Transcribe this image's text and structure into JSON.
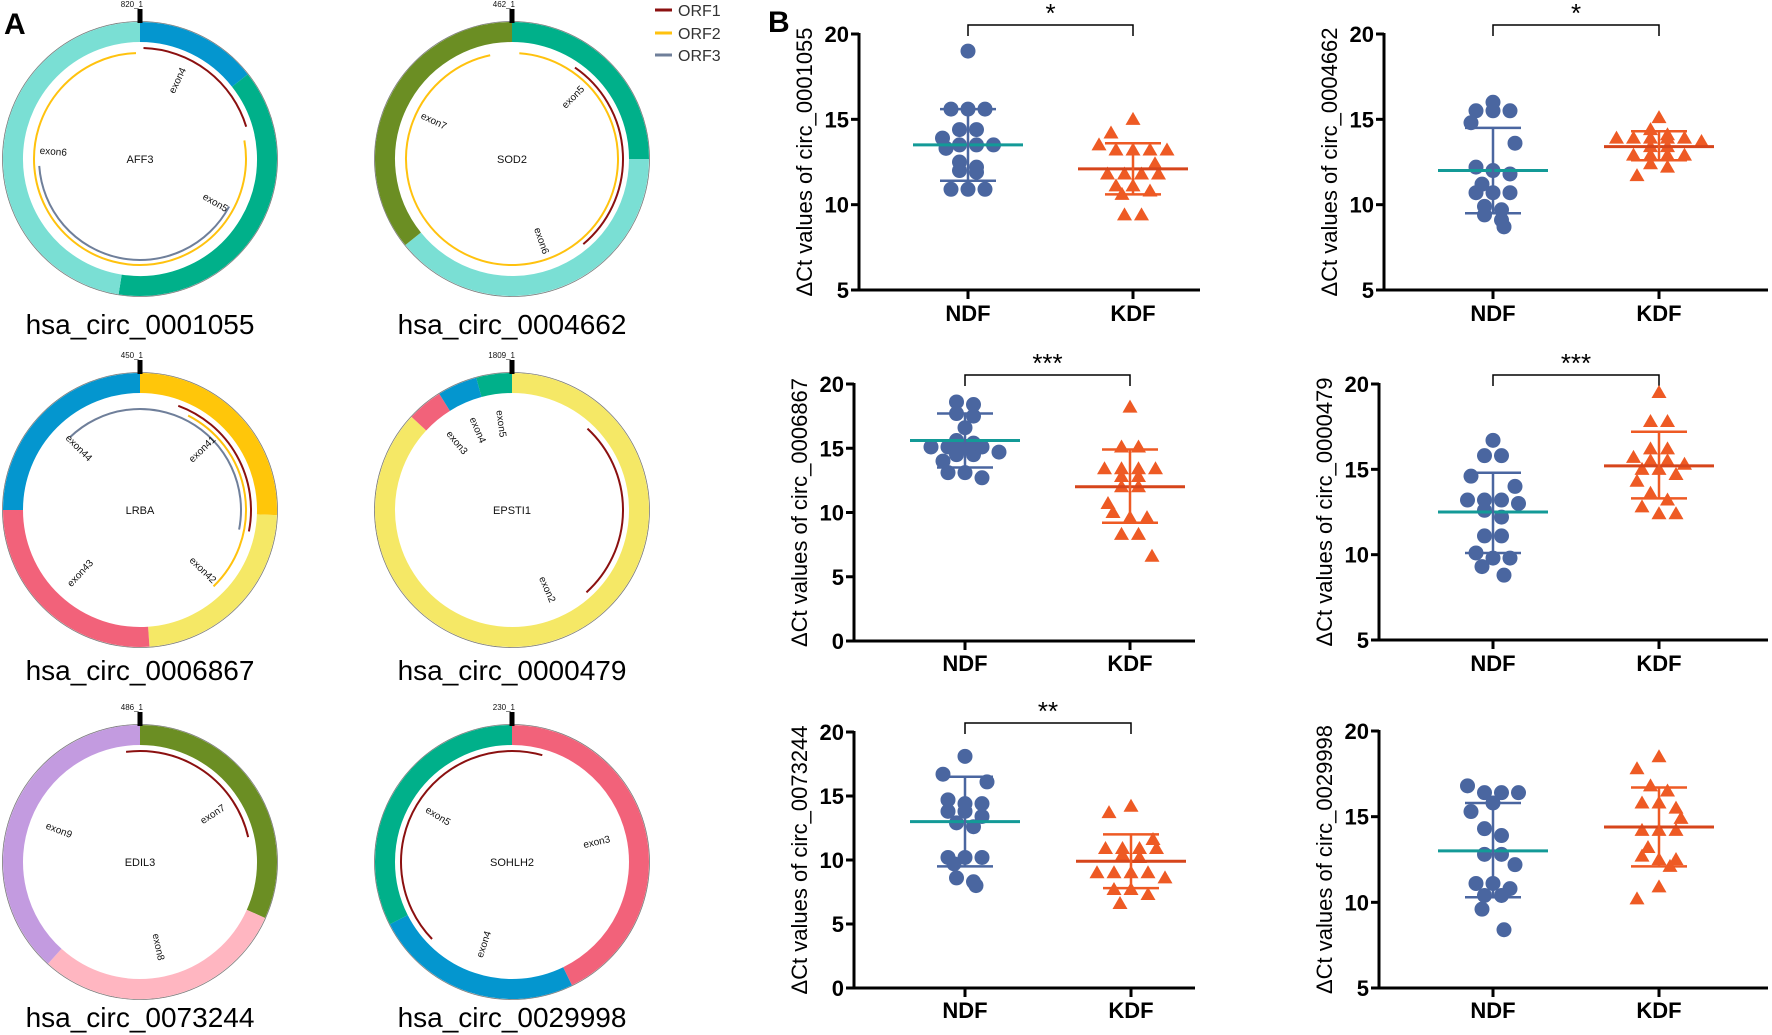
{
  "panel_labels": {
    "a": "A",
    "b": "B"
  },
  "legend": [
    {
      "label": "ORF1",
      "color": "#8b1010"
    },
    {
      "label": "ORF2",
      "color": "#ffc20e"
    },
    {
      "label": "ORF3",
      "color": "#6f7f9a"
    }
  ],
  "circles": [
    {
      "name": "hsa_circ_0001055",
      "gene": "AFF3",
      "position_label": "820_1",
      "segments": [
        {
          "exon": "exon4",
          "start": 0,
          "end": 0.144,
          "color": "#0496cf"
        },
        {
          "exon": "exon5",
          "start": 0.144,
          "end": 0.525,
          "color": "#00b08a"
        },
        {
          "exon": "exon6",
          "start": 0.525,
          "end": 1,
          "color": "#7adfd4"
        }
      ],
      "orfs": [
        {
          "orf": "ORF1",
          "start": 0.005,
          "end": 0.203
        },
        {
          "orf": "ORF2",
          "start": 0.222,
          "end": 0.994
        },
        {
          "orf": "ORF3",
          "start": 0.328,
          "end": 0.739
        }
      ]
    },
    {
      "name": "hsa_circ_0004662",
      "gene": "SOD2",
      "position_label": "462_1",
      "segments": [
        {
          "exon": "exon5",
          "start": 0,
          "end": 0.25,
          "color": "#00b08a"
        },
        {
          "exon": "exon6",
          "start": 0.25,
          "end": 0.642,
          "color": "#7adfd4"
        },
        {
          "exon": "exon7",
          "start": 0.642,
          "end": 1,
          "color": "#6b8e23"
        }
      ],
      "orfs": [
        {
          "orf": "ORF1",
          "start": 0.096,
          "end": 0.389
        },
        {
          "orf": "ORF2",
          "start": 0.011,
          "end": 0.967
        }
      ]
    },
    {
      "name": "hsa_circ_0006867",
      "gene": "LRBA",
      "position_label": "450_1",
      "segments": [
        {
          "exon": "exon41",
          "start": 0,
          "end": 0.256,
          "color": "#ffc60a"
        },
        {
          "exon": "exon42",
          "start": 0.256,
          "end": 0.489,
          "color": "#f5e866"
        },
        {
          "exon": "exon43",
          "start": 0.489,
          "end": 0.75,
          "color": "#f2627a"
        },
        {
          "exon": "exon44",
          "start": 0.75,
          "end": 1,
          "color": "#0496cf"
        }
      ],
      "orfs": [
        {
          "orf": "ORF1",
          "start": 0.056,
          "end": 0.281
        },
        {
          "orf": "ORF2",
          "start": 0.075,
          "end": 0.378
        },
        {
          "orf": "ORF3",
          "start": 0.878,
          "end": 1.281
        }
      ]
    },
    {
      "name": "hsa_circ_0000479",
      "gene": "EPSTI1",
      "position_label": "1809_1",
      "segments": [
        {
          "exon": "exon2",
          "start": 0,
          "end": 0.869,
          "color": "#f5e866"
        },
        {
          "exon": "exon3",
          "start": 0.869,
          "end": 0.911,
          "color": "#f2627a"
        },
        {
          "exon": "exon4",
          "start": 0.911,
          "end": 0.958,
          "color": "#0496cf"
        },
        {
          "exon": "exon5",
          "start": 0.958,
          "end": 1,
          "color": "#00b08a"
        }
      ],
      "orfs": [
        {
          "orf": "ORF1",
          "start": 0.119,
          "end": 0.383
        }
      ]
    },
    {
      "name": "hsa_circ_0073244",
      "gene": "EDIL3",
      "position_label": "486_1",
      "segments": [
        {
          "exon": "exon7",
          "start": 0,
          "end": 0.317,
          "color": "#6b8e23"
        },
        {
          "exon": "exon8",
          "start": 0.317,
          "end": 0.617,
          "color": "#ffb6c1"
        },
        {
          "exon": "exon9",
          "start": 0.617,
          "end": 1,
          "color": "#c39be0"
        }
      ],
      "orfs": [
        {
          "orf": "ORF1",
          "start": 0.98,
          "end": 1.214
        }
      ]
    },
    {
      "name": "hsa_circ_0029998",
      "gene": "SOHLH2",
      "position_label": "230_1",
      "segments": [
        {
          "exon": "exon3",
          "start": 0,
          "end": 0.428,
          "color": "#f2627a"
        },
        {
          "exon": "exon4",
          "start": 0.428,
          "end": 0.675,
          "color": "#0496cf"
        },
        {
          "exon": "exon5",
          "start": 0.675,
          "end": 1,
          "color": "#00b08a"
        }
      ],
      "orfs": [
        {
          "orf": "ORF1",
          "start": 0.628,
          "end": 1.044
        }
      ]
    }
  ],
  "chart_data": [
    {
      "type": "scatter",
      "title": "",
      "ylabel": "ΔCt values of circ_0001055",
      "xlabel": "",
      "categories": [
        "NDF",
        "KDF"
      ],
      "ylim": [
        5,
        20
      ],
      "yticks": [
        5,
        10,
        15,
        20
      ],
      "significance": "*",
      "series": [
        {
          "name": "NDF",
          "marker": "circle",
          "color": "#4a66a0",
          "mean_color": "#139a97",
          "mean": 13.5,
          "sd_low": 11.4,
          "sd_high": 15.6,
          "values": [
            19.0,
            15.6,
            15.6,
            15.6,
            14.4,
            14.4,
            13.9,
            13.5,
            13.3,
            13.5,
            13.5,
            12.5,
            12.2,
            12.0,
            11.9,
            10.9,
            10.9,
            10.9
          ]
        },
        {
          "name": "KDF",
          "marker": "triangle",
          "color": "#ee5a24",
          "mean_color": "#d6451b",
          "mean": 12.1,
          "sd_low": 10.6,
          "sd_high": 13.6,
          "values": [
            15.0,
            14.2,
            13.5,
            13.2,
            13.2,
            13.2,
            13.2,
            12.4,
            11.8,
            11.8,
            11.8,
            11.8,
            11.1,
            11.1,
            10.8,
            10.6,
            9.4,
            9.4
          ]
        }
      ]
    },
    {
      "type": "scatter",
      "title": "",
      "ylabel": "ΔCt values of circ_0004662",
      "xlabel": "",
      "categories": [
        "NDF",
        "KDF"
      ],
      "ylim": [
        5,
        20
      ],
      "yticks": [
        5,
        10,
        15,
        20
      ],
      "significance": "*",
      "series": [
        {
          "name": "NDF",
          "marker": "circle",
          "color": "#4a66a0",
          "mean_color": "#139a97",
          "mean": 12.0,
          "sd_low": 9.5,
          "sd_high": 14.5,
          "values": [
            16.0,
            15.5,
            15.5,
            15.5,
            14.8,
            13.6,
            12.2,
            12.0,
            11.8,
            11.2,
            10.7,
            10.7,
            10.7,
            9.9,
            9.7,
            9.4,
            9.1,
            8.7
          ]
        },
        {
          "name": "KDF",
          "marker": "triangle",
          "color": "#ee5a24",
          "mean_color": "#d6451b",
          "mean": 13.4,
          "sd_low": 12.6,
          "sd_high": 14.3,
          "values": [
            15.1,
            14.4,
            14.1,
            13.9,
            13.9,
            13.9,
            13.9,
            13.9,
            13.7,
            13.4,
            13.4,
            12.9,
            12.9,
            12.9,
            12.9,
            12.4,
            12.2,
            11.7
          ]
        }
      ]
    },
    {
      "type": "scatter",
      "title": "",
      "ylabel": "ΔCt values of circ_0006867",
      "xlabel": "",
      "categories": [
        "NDF",
        "KDF"
      ],
      "ylim": [
        0,
        20
      ],
      "yticks": [
        0,
        5,
        10,
        15,
        20
      ],
      "significance": "***",
      "series": [
        {
          "name": "NDF",
          "marker": "circle",
          "color": "#4a66a0",
          "mean_color": "#139a97",
          "mean": 15.6,
          "sd_low": 13.5,
          "sd_high": 17.7,
          "values": [
            18.6,
            18.4,
            17.7,
            17.5,
            16.6,
            15.6,
            15.4,
            15.1,
            15.1,
            15.1,
            14.7,
            14.5,
            14.5,
            14.0,
            13.1,
            13.1,
            12.7,
            15.1
          ]
        },
        {
          "name": "KDF",
          "marker": "triangle",
          "color": "#ee5a24",
          "mean_color": "#d6451b",
          "mean": 12.0,
          "sd_low": 9.2,
          "sd_high": 14.9,
          "values": [
            18.2,
            15.1,
            15.1,
            13.4,
            13.4,
            13.4,
            13.4,
            12.8,
            12.8,
            12.0,
            12.0,
            10.7,
            10.0,
            9.6,
            9.6,
            8.3,
            8.3,
            6.6
          ]
        }
      ]
    },
    {
      "type": "scatter",
      "title": "",
      "ylabel": "ΔCt values of circ_0000479",
      "xlabel": "",
      "categories": [
        "NDF",
        "KDF"
      ],
      "ylim": [
        5,
        20
      ],
      "yticks": [
        5,
        10,
        15,
        20
      ],
      "significance": "***",
      "series": [
        {
          "name": "NDF",
          "marker": "circle",
          "color": "#4a66a0",
          "mean_color": "#139a97",
          "mean": 12.5,
          "sd_low": 10.1,
          "sd_high": 14.8,
          "values": [
            16.7,
            15.8,
            15.8,
            14.6,
            14.0,
            13.2,
            13.2,
            13.2,
            13.0,
            12.6,
            12.2,
            11.1,
            11.1,
            10.1,
            9.8,
            9.8,
            9.3,
            8.8
          ]
        },
        {
          "name": "KDF",
          "marker": "triangle",
          "color": "#ee5a24",
          "mean_color": "#d6451b",
          "mean": 15.2,
          "sd_low": 13.3,
          "sd_high": 17.2,
          "values": [
            19.5,
            17.8,
            17.8,
            16.2,
            16.2,
            15.5,
            15.3,
            15.5,
            15.7,
            15.0,
            15.0,
            14.7,
            14.3,
            13.6,
            13.2,
            12.8,
            12.4,
            12.4
          ]
        }
      ]
    },
    {
      "type": "scatter",
      "title": "",
      "ylabel": "ΔCt values of circ_0073244",
      "xlabel": "",
      "categories": [
        "NDF",
        "KDF"
      ],
      "ylim": [
        0,
        20
      ],
      "yticks": [
        0,
        5,
        10,
        15,
        20
      ],
      "significance": "**",
      "series": [
        {
          "name": "NDF",
          "marker": "circle",
          "color": "#4a66a0",
          "mean_color": "#139a97",
          "mean": 13.0,
          "sd_low": 9.5,
          "sd_high": 16.5,
          "values": [
            18.1,
            16.7,
            16.1,
            14.7,
            14.4,
            14.4,
            13.8,
            13.8,
            13.4,
            12.6,
            12.9,
            10.2,
            10.2,
            10.2,
            9.7,
            8.6,
            8.3,
            8.0
          ]
        },
        {
          "name": "KDF",
          "marker": "triangle",
          "color": "#ee5a24",
          "mean_color": "#d6451b",
          "mean": 9.9,
          "sd_low": 7.8,
          "sd_high": 12.0,
          "values": [
            14.2,
            13.7,
            11.6,
            10.9,
            10.9,
            10.9,
            10.9,
            10.4,
            10.2,
            9.0,
            9.0,
            9.0,
            9.0,
            8.6,
            7.7,
            7.7,
            7.3,
            6.6
          ]
        }
      ]
    },
    {
      "type": "scatter",
      "title": "",
      "ylabel": "ΔCt values of circ_0029998",
      "xlabel": "",
      "categories": [
        "NDF",
        "KDF"
      ],
      "ylim": [
        5,
        20
      ],
      "yticks": [
        5,
        10,
        15,
        20
      ],
      "significance": "",
      "series": [
        {
          "name": "NDF",
          "marker": "circle",
          "color": "#4a66a0",
          "mean_color": "#139a97",
          "mean": 13.0,
          "sd_low": 10.3,
          "sd_high": 15.8,
          "values": [
            16.8,
            16.4,
            16.4,
            16.4,
            15.8,
            15.3,
            14.3,
            13.9,
            12.8,
            12.8,
            12.2,
            11.1,
            11.1,
            10.8,
            10.4,
            10.4,
            9.6,
            8.4
          ]
        },
        {
          "name": "KDF",
          "marker": "triangle",
          "color": "#ee5a24",
          "mean_color": "#d6451b",
          "mean": 14.4,
          "sd_low": 12.1,
          "sd_high": 16.7,
          "values": [
            18.5,
            17.8,
            16.8,
            16.5,
            15.8,
            15.8,
            15.5,
            14.9,
            14.2,
            14.2,
            14.2,
            13.2,
            12.7,
            12.5,
            12.5,
            12.1,
            10.9,
            10.2
          ]
        }
      ]
    }
  ]
}
